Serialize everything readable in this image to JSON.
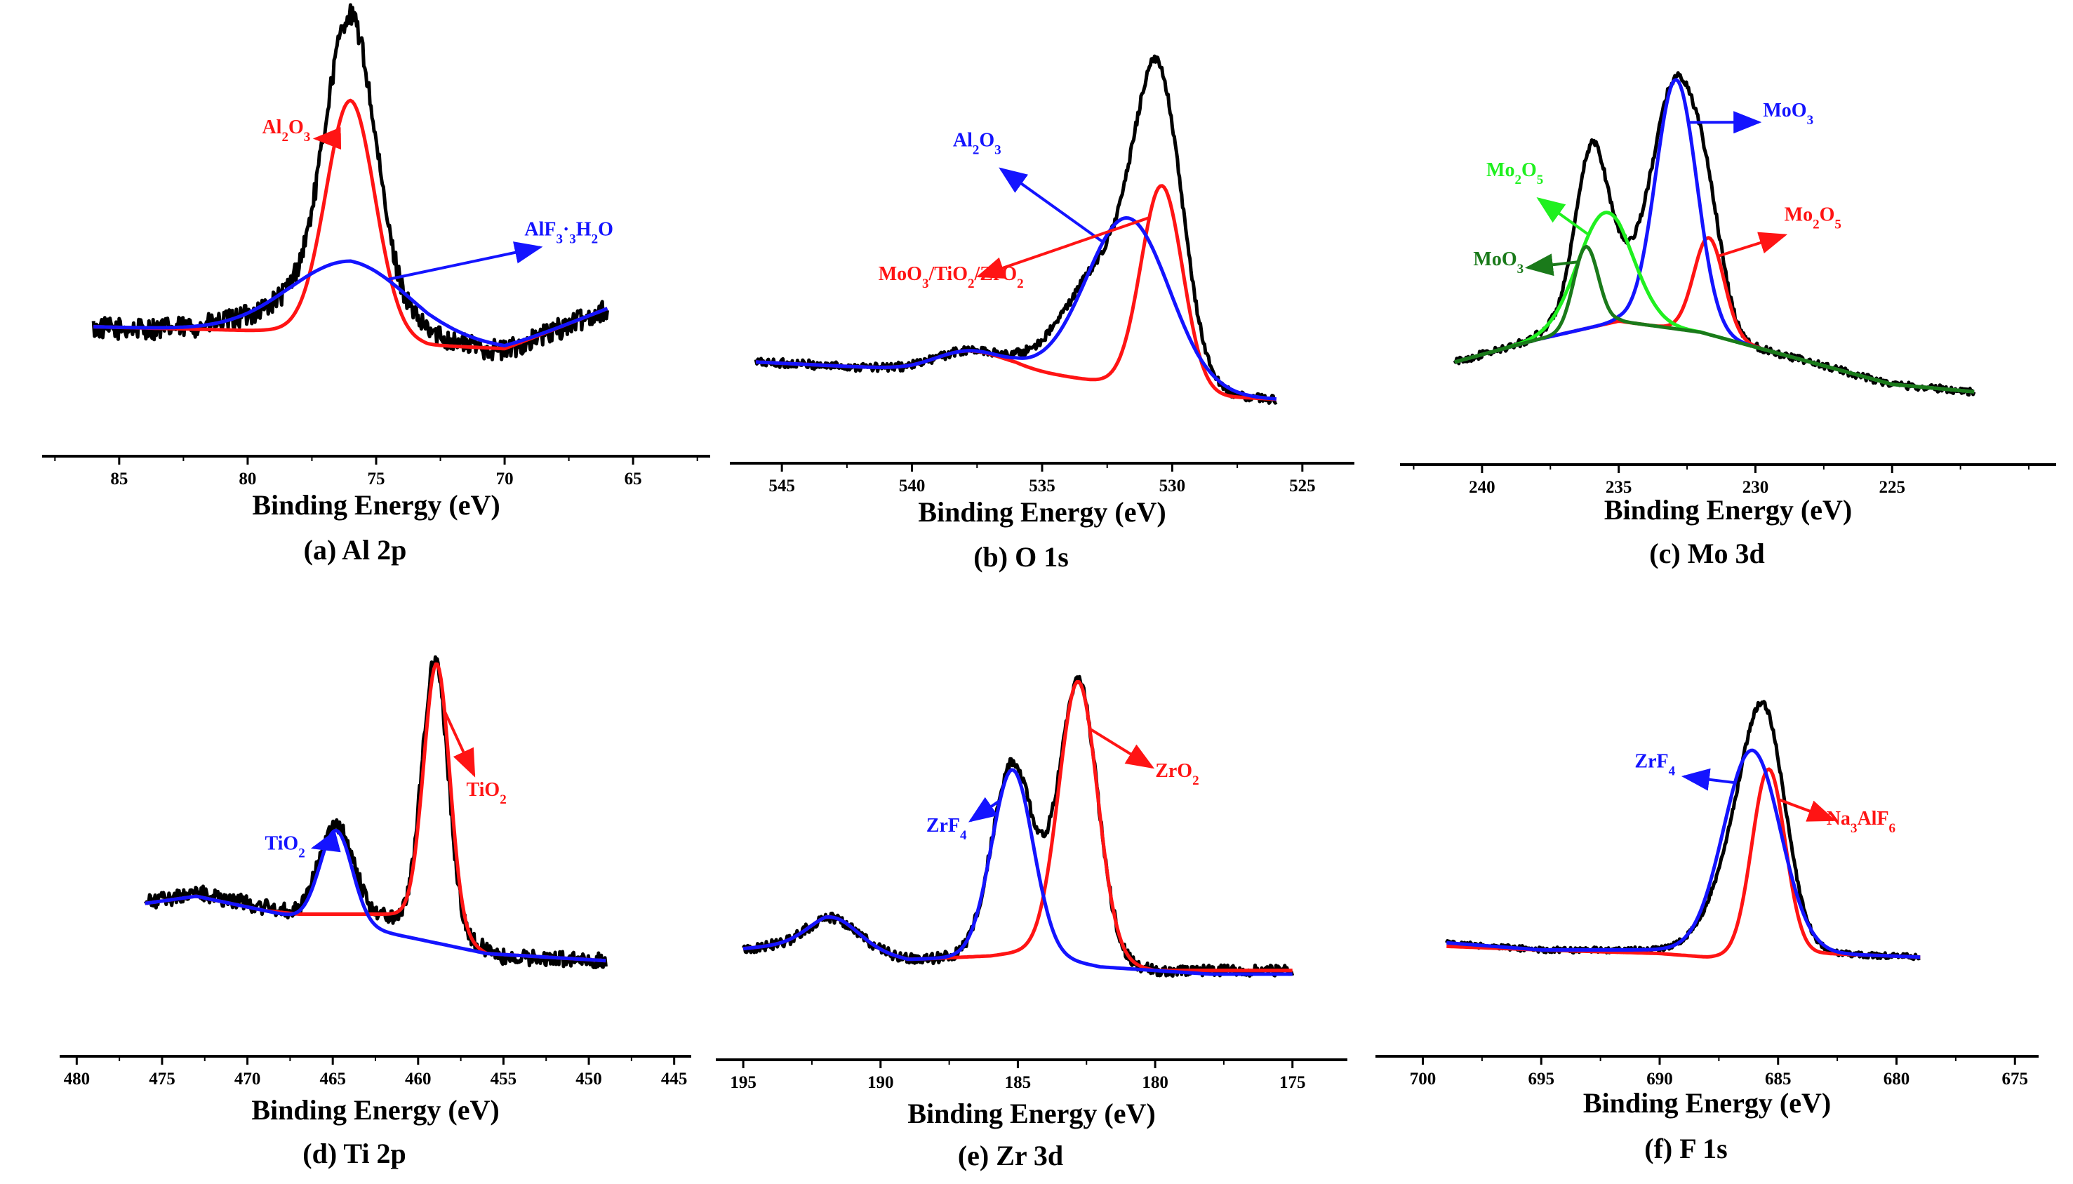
{
  "figure": {
    "colors": {
      "measured": "#000000",
      "red": "#ff1414",
      "blue": "#1414ff",
      "light_green": "#20f020",
      "dark_green": "#1a7a1a"
    }
  },
  "chart_data": [
    {
      "type": "line",
      "title": "(a) Al 2p",
      "xlabel": "Binding Energy (eV)",
      "ylabel": "",
      "xlim": [
        88,
        62
      ],
      "ylim": [
        0,
        1
      ],
      "xticks": [
        85,
        80,
        75,
        70,
        65
      ],
      "noise": 0.03,
      "series": [
        {
          "name": "measured",
          "color": "#000000",
          "baseline": [
            [
              86,
              0.215
            ],
            [
              80,
              0.21
            ],
            [
              77,
              0.22
            ],
            [
              73,
              0.16
            ],
            [
              70,
              0.15
            ],
            [
              67,
              0.24
            ],
            [
              66,
              0.27
            ]
          ],
          "peaks": [
            [
              76.0,
              0.75,
              0.95
            ],
            [
              76.4,
              0.12,
              2.5
            ]
          ]
        },
        {
          "name": "Al2O3",
          "color": "#ff1414",
          "baseline": [
            [
              86,
              0.22
            ],
            [
              80,
              0.21
            ],
            [
              76,
              0.21
            ],
            [
              73,
              0.17
            ],
            [
              70,
              0.16
            ],
            [
              66,
              0.27
            ]
          ],
          "peaks": [
            [
              76.0,
              0.63,
              0.95
            ]
          ]
        },
        {
          "name": "AlF3·3H2O",
          "color": "#1414ff",
          "baseline": [
            [
              86,
              0.22
            ],
            [
              80,
              0.21
            ],
            [
              76,
              0.21
            ],
            [
              73,
              0.17
            ],
            [
              70,
              0.16
            ],
            [
              66,
              0.27
            ]
          ],
          "peaks": [
            [
              76.0,
              0.19,
              2.4
            ]
          ]
        }
      ],
      "annotations": [
        {
          "text": "Al2O3",
          "color": "#ff1414",
          "x": 78.5,
          "y": 0.75
        },
        {
          "text": "AlF3·3H2O",
          "color": "#1414ff",
          "x": 67.5,
          "y": 0.47
        }
      ]
    },
    {
      "type": "line",
      "title": "(b) O 1s",
      "xlabel": "Binding Energy (eV)",
      "ylabel": "",
      "xlim": [
        547,
        523
      ],
      "ylim": [
        0,
        1
      ],
      "xticks": [
        545,
        540,
        535,
        530,
        525
      ],
      "noise": 0.012,
      "series": [
        {
          "name": "measured",
          "color": "#000000",
          "baseline": [
            [
              546,
              0.14
            ],
            [
              540,
              0.12
            ],
            [
              536,
              0.12
            ],
            [
              529,
              0.05
            ],
            [
              526,
              0.04
            ]
          ],
          "peaks": [
            [
              537.8,
              0.05,
              1.3
            ],
            [
              530.5,
              0.72,
              0.9
            ],
            [
              532.4,
              0.32,
              1.6
            ]
          ]
        },
        {
          "name": "MoO3/TiO2/ZrO2",
          "color": "#ff1414",
          "baseline": [
            [
              546,
              0.14
            ],
            [
              540,
              0.12
            ],
            [
              536,
              0.12
            ],
            [
              529,
              0.05
            ],
            [
              526,
              0.04
            ]
          ],
          "peaks": [
            [
              537.8,
              0.05,
              1.3
            ],
            [
              530.4,
              0.55,
              0.8
            ]
          ]
        },
        {
          "name": "Al2O3",
          "color": "#1414ff",
          "baseline": [
            [
              546,
              0.14
            ],
            [
              540,
              0.12
            ],
            [
              536,
              0.12
            ],
            [
              529,
              0.05
            ],
            [
              526,
              0.04
            ]
          ],
          "peaks": [
            [
              537.8,
              0.05,
              1.3
            ],
            [
              531.7,
              0.45,
              1.6
            ]
          ]
        }
      ],
      "annotations": [
        {
          "text": "Al2O3",
          "color": "#1414ff",
          "x": 537.5,
          "y": 0.72
        },
        {
          "text": "MoO3/TiO2/ZrO2",
          "color": "#ff1414",
          "x": 538.5,
          "y": 0.36
        }
      ]
    },
    {
      "type": "line",
      "title": "(c) Mo 3d",
      "xlabel": "Binding Energy (eV)",
      "ylabel": "",
      "xlim": [
        243,
        219
      ],
      "ylim": [
        0,
        1
      ],
      "xticks": [
        240,
        235,
        230,
        225
      ],
      "noise": 0.01,
      "series": [
        {
          "name": "measured",
          "color": "#000000",
          "baseline": [
            [
              241,
              0.14
            ],
            [
              238,
              0.2
            ],
            [
              235,
              0.25
            ],
            [
              232,
              0.22
            ],
            [
              229,
              0.16
            ],
            [
              225,
              0.08
            ],
            [
              222,
              0.06
            ]
          ],
          "peaks": [
            [
              236.0,
              0.34,
              0.55
            ],
            [
              235.5,
              0.17,
              1.1
            ],
            [
              232.9,
              0.65,
              0.85
            ],
            [
              231.7,
              0.2,
              0.55
            ]
          ]
        },
        {
          "name": "Mo2O5",
          "color": "#ff1414",
          "baseline": [
            [
              241,
              0.14
            ],
            [
              238,
              0.2
            ],
            [
              235,
              0.25
            ],
            [
              232,
              0.22
            ],
            [
              229,
              0.16
            ],
            [
              225,
              0.08
            ],
            [
              222,
              0.06
            ]
          ],
          "peaks": [
            [
              231.7,
              0.26,
              0.55
            ]
          ]
        },
        {
          "name": "MoO3",
          "color": "#1414ff",
          "baseline": [
            [
              241,
              0.14
            ],
            [
              238,
              0.2
            ],
            [
              235,
              0.25
            ],
            [
              232,
              0.22
            ],
            [
              229,
              0.16
            ],
            [
              225,
              0.08
            ],
            [
              222,
              0.06
            ]
          ],
          "peaks": [
            [
              232.9,
              0.67,
              0.75
            ]
          ]
        },
        {
          "name": "Mo2O5",
          "color": "#20f020",
          "baseline": [
            [
              241,
              0.14
            ],
            [
              238,
              0.2
            ],
            [
              235,
              0.25
            ],
            [
              232,
              0.22
            ],
            [
              229,
              0.16
            ],
            [
              225,
              0.08
            ],
            [
              222,
              0.06
            ]
          ],
          "peaks": [
            [
              235.5,
              0.3,
              1.0
            ]
          ]
        },
        {
          "name": "MoO3",
          "color": "#1a7a1a",
          "baseline": [
            [
              241,
              0.14
            ],
            [
              238,
              0.2
            ],
            [
              235,
              0.25
            ],
            [
              232,
              0.22
            ],
            [
              229,
              0.16
            ],
            [
              225,
              0.08
            ],
            [
              222,
              0.06
            ]
          ],
          "peaks": [
            [
              236.2,
              0.22,
              0.45
            ]
          ]
        }
      ],
      "annotations": [
        {
          "text": "MoO3",
          "color": "#1414ff",
          "x": 228.8,
          "y": 0.8
        },
        {
          "text": "Mo2O5",
          "color": "#20f020",
          "x": 238.8,
          "y": 0.64
        },
        {
          "text": "Mo2O5",
          "color": "#ff1414",
          "x": 227.9,
          "y": 0.52
        },
        {
          "text": "MoO3",
          "color": "#1a7a1a",
          "x": 239.4,
          "y": 0.4
        }
      ]
    },
    {
      "type": "line",
      "title": "(d) Ti 2p",
      "xlabel": "Binding Energy (eV)",
      "ylabel": "",
      "xlim": [
        481,
        444
      ],
      "ylim": [
        0,
        1
      ],
      "xticks": [
        480,
        475,
        470,
        465,
        460,
        455,
        450,
        445
      ],
      "noise": 0.022,
      "series": [
        {
          "name": "measured",
          "color": "#000000",
          "baseline": [
            [
              476,
              0.28
            ],
            [
              473,
              0.31
            ],
            [
              469,
              0.27
            ],
            [
              467,
              0.25
            ],
            [
              460,
              0.24
            ],
            [
              455,
              0.13
            ],
            [
              449,
              0.12
            ]
          ],
          "peaks": [
            [
              464.8,
              0.25,
              1.0
            ],
            [
              459.0,
              0.74,
              0.75
            ]
          ]
        },
        {
          "name": "TiO2",
          "color": "#ff1414",
          "baseline": [
            [
              476,
              0.28
            ],
            [
              473,
              0.3
            ],
            [
              469,
              0.26
            ],
            [
              467,
              0.25
            ],
            [
              460,
              0.25
            ],
            [
              456,
              0.14
            ],
            [
              449,
              0.12
            ]
          ],
          "peaks": [
            [
              458.9,
              0.73,
              0.75
            ]
          ]
        },
        {
          "name": "TiO2",
          "color": "#1414ff",
          "baseline": [
            [
              476,
              0.28
            ],
            [
              473,
              0.3
            ],
            [
              469,
              0.26
            ],
            [
              467,
              0.24
            ],
            [
              463,
              0.21
            ],
            [
              456,
              0.14
            ],
            [
              449,
              0.12
            ]
          ],
          "peaks": [
            [
              464.8,
              0.26,
              0.95
            ]
          ]
        }
      ],
      "annotations": [
        {
          "text": "TiO2",
          "color": "#ff1414",
          "x": 456.0,
          "y": 0.58
        },
        {
          "text": "TiO2",
          "color": "#1414ff",
          "x": 467.8,
          "y": 0.43
        }
      ]
    },
    {
      "type": "line",
      "title": "(e) Zr 3d",
      "xlabel": "Binding Energy (eV)",
      "ylabel": "",
      "xlim": [
        196,
        173
      ],
      "ylim": [
        0,
        1
      ],
      "xticks": [
        195,
        190,
        185,
        180,
        175
      ],
      "noise": 0.015,
      "series": [
        {
          "name": "measured",
          "color": "#000000",
          "baseline": [
            [
              195,
              0.17
            ],
            [
              192,
              0.19
            ],
            [
              189,
              0.14
            ],
            [
              186,
              0.15
            ],
            [
              184,
              0.17
            ],
            [
              180,
              0.11
            ],
            [
              175,
              0.11
            ]
          ],
          "peaks": [
            [
              191.7,
              0.07,
              0.9
            ],
            [
              185.2,
              0.52,
              0.75
            ],
            [
              182.8,
              0.75,
              0.7
            ]
          ]
        },
        {
          "name": "ZrO2",
          "color": "#ff1414",
          "baseline": [
            [
              195,
              0.17
            ],
            [
              192,
              0.19
            ],
            [
              189,
              0.14
            ],
            [
              186,
              0.15
            ],
            [
              184,
              0.17
            ],
            [
              180,
              0.11
            ],
            [
              175,
              0.11
            ]
          ],
          "peaks": [
            [
              191.7,
              0.07,
              0.9
            ],
            [
              182.8,
              0.75,
              0.7
            ]
          ]
        },
        {
          "name": "ZrF4",
          "color": "#1414ff",
          "baseline": [
            [
              195,
              0.17
            ],
            [
              192,
              0.19
            ],
            [
              189,
              0.14
            ],
            [
              186,
              0.15
            ],
            [
              184,
              0.15
            ],
            [
              182,
              0.12
            ],
            [
              178,
              0.1
            ],
            [
              175,
              0.1
            ]
          ],
          "peaks": [
            [
              191.7,
              0.07,
              0.9
            ],
            [
              185.2,
              0.51,
              0.75
            ]
          ]
        }
      ],
      "annotations": [
        {
          "text": "ZrO2",
          "color": "#ff1414",
          "x": 179.2,
          "y": 0.64
        },
        {
          "text": "ZrF4",
          "color": "#1414ff",
          "x": 187.6,
          "y": 0.49
        }
      ]
    },
    {
      "type": "line",
      "title": "(f) F 1s",
      "xlabel": "Binding Energy (eV)",
      "ylabel": "",
      "xlim": [
        702,
        674
      ],
      "ylim": [
        0,
        1
      ],
      "xticks": [
        700,
        695,
        690,
        685,
        680,
        675
      ],
      "noise": 0.008,
      "series": [
        {
          "name": "measured",
          "color": "#000000",
          "baseline": [
            [
              699,
              0.17
            ],
            [
              695,
              0.15
            ],
            [
              690,
              0.15
            ],
            [
              687,
              0.15
            ],
            [
              683,
              0.14
            ],
            [
              679,
              0.13
            ]
          ],
          "peaks": [
            [
              685.5,
              0.42,
              0.85
            ],
            [
              686.3,
              0.32,
              1.25
            ]
          ]
        },
        {
          "name": "Na3AlF6",
          "color": "#ff1414",
          "baseline": [
            [
              699,
              0.16
            ],
            [
              695,
              0.15
            ],
            [
              690,
              0.14
            ],
            [
              688,
              0.13
            ],
            [
              683,
              0.14
            ],
            [
              679,
              0.13
            ]
          ],
          "peaks": [
            [
              685.4,
              0.52,
              0.7
            ]
          ]
        },
        {
          "name": "ZrF4",
          "color": "#1414ff",
          "baseline": [
            [
              699,
              0.17
            ],
            [
              695,
              0.15
            ],
            [
              690,
              0.15
            ],
            [
              687,
              0.15
            ],
            [
              683,
              0.14
            ],
            [
              679,
              0.13
            ]
          ],
          "peaks": [
            [
              686.1,
              0.56,
              1.2
            ]
          ]
        }
      ],
      "annotations": [
        {
          "text": "ZrF4",
          "color": "#1414ff",
          "x": 690.2,
          "y": 0.66
        },
        {
          "text": "Na3AlF6",
          "color": "#ff1414",
          "x": 681.5,
          "y": 0.5
        }
      ]
    }
  ]
}
